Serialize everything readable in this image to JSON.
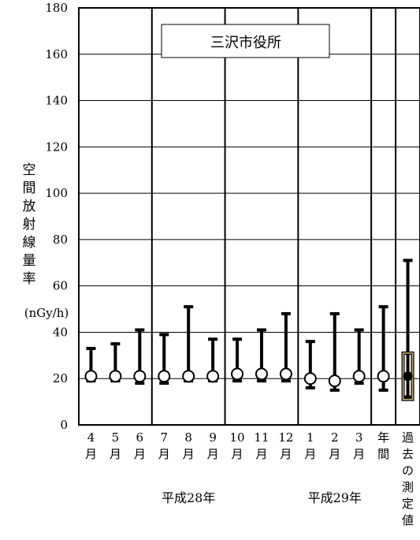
{
  "chart_data": {
    "type": "range",
    "title": "三沢市役所",
    "ylabel": [
      "空",
      "間",
      "放",
      "射",
      "線",
      "量",
      "率"
    ],
    "yunit": "(nGy/h)",
    "ylim": [
      0,
      180
    ],
    "yticks": [
      0,
      20,
      40,
      60,
      80,
      100,
      120,
      140,
      160,
      180
    ],
    "grid": true,
    "categories": [
      {
        "label": [
          "4",
          "月"
        ]
      },
      {
        "label": [
          "5",
          "月"
        ]
      },
      {
        "label": [
          "6",
          "月"
        ]
      },
      {
        "label": [
          "7",
          "月"
        ]
      },
      {
        "label": [
          "8",
          "月"
        ]
      },
      {
        "label": [
          "9",
          "月"
        ]
      },
      {
        "label": [
          "10",
          "月"
        ]
      },
      {
        "label": [
          "11",
          "月"
        ]
      },
      {
        "label": [
          "12",
          "月"
        ]
      },
      {
        "label": [
          "1",
          "月"
        ]
      },
      {
        "label": [
          "2",
          "月"
        ]
      },
      {
        "label": [
          "3",
          "月"
        ]
      },
      {
        "label": [
          "年",
          "間"
        ]
      },
      {
        "label": [
          "過",
          "去",
          "の",
          "測",
          "定",
          "値"
        ]
      }
    ],
    "monthly": [
      {
        "min": 19,
        "max": 33,
        "mean": 21
      },
      {
        "min": 19,
        "max": 35,
        "mean": 21
      },
      {
        "min": 18,
        "max": 41,
        "mean": 21
      },
      {
        "min": 18,
        "max": 39,
        "mean": 21
      },
      {
        "min": 19,
        "max": 51,
        "mean": 21
      },
      {
        "min": 19,
        "max": 37,
        "mean": 21
      },
      {
        "min": 19,
        "max": 37,
        "mean": 22
      },
      {
        "min": 19,
        "max": 41,
        "mean": 22
      },
      {
        "min": 19,
        "max": 48,
        "mean": 22
      },
      {
        "min": 16,
        "max": 36,
        "mean": 20
      },
      {
        "min": 15,
        "max": 48,
        "mean": 19
      },
      {
        "min": 18,
        "max": 41,
        "mean": 21
      },
      {
        "min": 15,
        "max": 51,
        "mean": 21
      }
    ],
    "past": {
      "min": 12,
      "max": 71,
      "mean": 21,
      "box_low": 11,
      "box_high": 31
    },
    "groups": [
      {
        "label": "平成28年",
        "from": 0,
        "to": 8
      },
      {
        "label": "平成29年",
        "from": 9,
        "to": 11
      }
    ],
    "separators_after": [
      2,
      5,
      8,
      11,
      12
    ]
  }
}
